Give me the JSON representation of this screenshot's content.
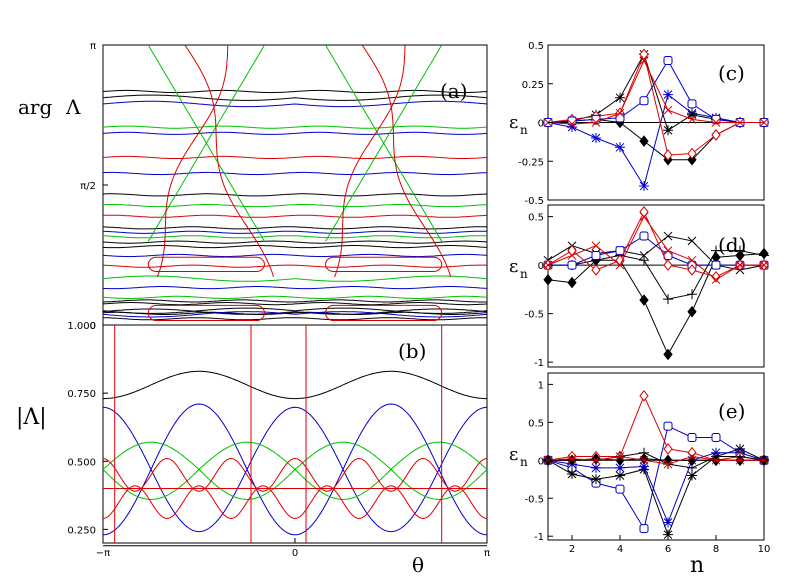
{
  "chart_data": [
    {
      "id": "a",
      "type": "line",
      "panel_label": "(a)",
      "ylabel_main": "arg",
      "ylabel_symbol": "Λ",
      "xlim": [
        -3.1416,
        3.1416
      ],
      "ylim": [
        0,
        3.1416
      ],
      "yticks": [
        {
          "value": 3.1416,
          "label": "π"
        },
        {
          "value": 1.5708,
          "label": "π/2"
        },
        {
          "value": 0,
          "label": "0"
        }
      ],
      "series": [
        {
          "name": "black",
          "color": "#000000",
          "flat_levels": [
            2.62,
            1.46,
            1.09,
            0.93,
            0.88,
            0.27,
            0.24,
            0.13,
            0.07
          ],
          "mid_dip": [
            2.55,
            0.16,
            0.15
          ]
        },
        {
          "name": "blue",
          "color": "#0000cc",
          "flat_levels": [
            2.15,
            1.7,
            1.04,
            0.78,
            0.42
          ],
          "mid_dip": [
            2.48,
            0.12
          ]
        },
        {
          "name": "green",
          "color": "#00c000",
          "flat_levels": [
            2.22,
            1.34,
            0.99,
            0.31
          ],
          "mid_dip": [
            0.52
          ]
        },
        {
          "name": "red",
          "color": "#dd0000",
          "flat_levels": [
            1.88,
            1.22,
            0.66
          ],
          "mid_dip": []
        }
      ]
    },
    {
      "id": "b",
      "type": "line",
      "panel_label": "(b)",
      "ylabel": "|Λ|",
      "xlabel": "θ",
      "xlim": [
        -3.1416,
        3.1416
      ],
      "ylim": [
        0.2,
        1.0
      ],
      "yticks": [
        {
          "value": 1.0,
          "label": "1.000"
        },
        {
          "value": 0.75,
          "label": "0.750"
        },
        {
          "value": 0.5,
          "label": "0.500"
        },
        {
          "value": 0.25,
          "label": "0.250"
        }
      ],
      "xticks": [
        {
          "value": -3.1416,
          "label": "−π"
        },
        {
          "value": 0,
          "label": "0"
        },
        {
          "value": 3.1416,
          "label": "π"
        }
      ],
      "series": [
        {
          "name": "black",
          "color": "#000000",
          "base": 0.78,
          "amp": 0.05,
          "base2": 0.19,
          "amp2": 0.0
        },
        {
          "name": "blue",
          "color": "#0000cc",
          "base": 0.47,
          "amp": 0.24
        },
        {
          "name": "green",
          "color": "#00c000",
          "base": 0.47,
          "amp": 0.1
        },
        {
          "name": "red",
          "color": "#dd0000",
          "base": 0.4,
          "amp": 0.12
        }
      ]
    },
    {
      "id": "c",
      "type": "line",
      "panel_label": "(c)",
      "ylabel": "ε",
      "ylabel_sub": "n",
      "xlim": [
        1,
        10
      ],
      "ylim": [
        -0.5,
        0.5
      ],
      "yticks": [
        {
          "value": 0.5,
          "label": "0.5"
        },
        {
          "value": 0.25,
          "label": "0.25"
        },
        {
          "value": 0,
          "label": "0"
        },
        {
          "value": -0.25,
          "label": "-0.25"
        },
        {
          "value": -0.5,
          "label": "-0.5"
        }
      ],
      "series": [
        {
          "name": "black-diamond-filled",
          "color": "#000000",
          "marker": "diamond-filled",
          "x": [
            1,
            2,
            3,
            4,
            5,
            6,
            7,
            8,
            9,
            10
          ],
          "y": [
            0.0,
            0.01,
            0.02,
            0.0,
            -0.12,
            -0.24,
            -0.24,
            -0.08,
            0.0,
            0.0
          ]
        },
        {
          "name": "blue-star",
          "color": "#0000cc",
          "marker": "star",
          "x": [
            1,
            2,
            3,
            4,
            5,
            6,
            7,
            8,
            9,
            10
          ],
          "y": [
            0.0,
            -0.03,
            -0.1,
            -0.16,
            -0.41,
            0.18,
            0.06,
            0.03,
            0.0,
            0.0
          ]
        },
        {
          "name": "black-star",
          "color": "#000000",
          "marker": "star",
          "x": [
            1,
            2,
            3,
            4,
            5,
            6,
            7,
            8,
            9,
            10
          ],
          "y": [
            0.0,
            0.01,
            0.05,
            0.16,
            0.44,
            -0.05,
            0.05,
            0.02,
            0.0,
            0.0
          ]
        },
        {
          "name": "red-diamond-open",
          "color": "#dd0000",
          "marker": "diamond-open",
          "x": [
            1,
            2,
            3,
            4,
            5,
            6,
            7,
            8,
            9,
            10
          ],
          "y": [
            0.0,
            0.02,
            0.04,
            0.06,
            0.44,
            -0.21,
            -0.2,
            -0.08,
            0.0,
            0.0
          ]
        },
        {
          "name": "blue-square-open",
          "color": "#0000cc",
          "marker": "square-open",
          "x": [
            1,
            2,
            3,
            4,
            5,
            6,
            7,
            8,
            9,
            10
          ],
          "y": [
            0.0,
            0.01,
            0.02,
            0.03,
            0.14,
            0.4,
            0.12,
            0.02,
            0.0,
            0.0
          ]
        },
        {
          "name": "red-cross",
          "color": "#dd0000",
          "marker": "cross",
          "x": [
            1,
            2,
            3,
            4,
            5,
            6,
            7,
            8,
            9,
            10
          ],
          "y": [
            0.0,
            -0.01,
            0.0,
            0.06,
            0.4,
            0.08,
            0.02,
            0.0,
            0.0,
            0.0
          ]
        }
      ]
    },
    {
      "id": "d",
      "type": "line",
      "panel_label": "(d)",
      "ylabel": "ε",
      "ylabel_sub": "n",
      "xlim": [
        1,
        10
      ],
      "ylim": [
        -1.05,
        0.62
      ],
      "yticks": [
        {
          "value": 0.5,
          "label": "0.5"
        },
        {
          "value": 0,
          "label": "0"
        },
        {
          "value": -0.5,
          "label": "-0.5"
        },
        {
          "value": -1.0,
          "label": "-1"
        }
      ],
      "series": [
        {
          "name": "black-diamond-filled",
          "color": "#000000",
          "marker": "diamond-filled",
          "x": [
            1,
            2,
            3,
            4,
            5,
            6,
            7,
            8,
            9,
            10
          ],
          "y": [
            -0.15,
            -0.18,
            0.05,
            0.05,
            -0.36,
            -0.92,
            -0.48,
            0.08,
            0.1,
            0.12
          ]
        },
        {
          "name": "black-plus",
          "color": "#000000",
          "marker": "plus",
          "x": [
            1,
            2,
            3,
            4,
            5,
            6,
            7,
            8,
            9,
            10
          ],
          "y": [
            0.0,
            0.0,
            0.05,
            0.1,
            0.05,
            -0.35,
            -0.3,
            0.15,
            0.15,
            0.1
          ]
        },
        {
          "name": "black-cross",
          "color": "#000000",
          "marker": "cross",
          "x": [
            1,
            2,
            3,
            4,
            5,
            6,
            7,
            8,
            9,
            10
          ],
          "y": [
            0.05,
            0.2,
            0.12,
            0.15,
            0.1,
            0.3,
            0.25,
            0.0,
            -0.05,
            0.0
          ]
        },
        {
          "name": "blue-square-open",
          "color": "#0000cc",
          "marker": "square-open",
          "x": [
            1,
            2,
            3,
            4,
            5,
            6,
            7,
            8,
            9,
            10
          ],
          "y": [
            0.0,
            0.0,
            0.1,
            0.15,
            0.3,
            0.1,
            0.0,
            0.0,
            0.0,
            0.0
          ]
        },
        {
          "name": "red-diamond-open",
          "color": "#dd0000",
          "marker": "diamond-open",
          "x": [
            1,
            2,
            3,
            4,
            5,
            6,
            7,
            8,
            9,
            10
          ],
          "y": [
            0.0,
            0.15,
            -0.05,
            0.05,
            0.55,
            0.0,
            -0.05,
            -0.12,
            0.0,
            0.0
          ]
        },
        {
          "name": "red-cross",
          "color": "#dd0000",
          "marker": "cross",
          "x": [
            1,
            2,
            3,
            4,
            5,
            6,
            7,
            8,
            9,
            10
          ],
          "y": [
            0.0,
            0.1,
            0.2,
            0.0,
            0.5,
            0.15,
            0.05,
            -0.15,
            0.0,
            0.0
          ]
        }
      ]
    },
    {
      "id": "e",
      "type": "line",
      "panel_label": "(e)",
      "ylabel": "ε",
      "ylabel_sub": "n",
      "xlabel": "n",
      "xlim": [
        1,
        10
      ],
      "ylim": [
        -1.05,
        1.15
      ],
      "yticks": [
        {
          "value": 1.0,
          "label": "1"
        },
        {
          "value": 0.5,
          "label": "0.5"
        },
        {
          "value": 0,
          "label": "0"
        },
        {
          "value": -0.5,
          "label": "-0.5"
        },
        {
          "value": -1.0,
          "label": "-1"
        }
      ],
      "xticks": [
        {
          "value": 2,
          "label": "2"
        },
        {
          "value": 4,
          "label": "4"
        },
        {
          "value": 6,
          "label": "6"
        },
        {
          "value": 8,
          "label": "8"
        },
        {
          "value": 10,
          "label": "10"
        }
      ],
      "series": [
        {
          "name": "blue-square-open",
          "color": "#0000cc",
          "marker": "square-open",
          "x": [
            1,
            2,
            3,
            4,
            5,
            6,
            7,
            8,
            9,
            10
          ],
          "y": [
            0.0,
            -0.1,
            -0.3,
            -0.38,
            -0.9,
            0.45,
            0.3,
            0.3,
            0.1,
            0.0
          ]
        },
        {
          "name": "black-star",
          "color": "#000000",
          "marker": "star",
          "x": [
            1,
            2,
            3,
            4,
            5,
            6,
            7,
            8,
            9,
            10
          ],
          "y": [
            0.0,
            -0.18,
            -0.25,
            -0.2,
            -0.12,
            -0.98,
            -0.2,
            0.05,
            0.15,
            0.0
          ]
        },
        {
          "name": "blue-star",
          "color": "#0000cc",
          "marker": "star",
          "x": [
            1,
            2,
            3,
            4,
            5,
            6,
            7,
            8,
            9,
            10
          ],
          "y": [
            0.0,
            -0.05,
            -0.1,
            -0.1,
            -0.08,
            -0.82,
            0.0,
            0.1,
            0.1,
            0.0
          ]
        },
        {
          "name": "red-diamond-open",
          "color": "#dd0000",
          "marker": "diamond-open",
          "x": [
            1,
            2,
            3,
            4,
            5,
            6,
            7,
            8,
            9,
            10
          ],
          "y": [
            0.0,
            0.05,
            0.05,
            0.05,
            0.85,
            0.15,
            0.1,
            0.0,
            0.05,
            0.0
          ]
        },
        {
          "name": "black-diamond-filled",
          "color": "#000000",
          "marker": "diamond-filled",
          "x": [
            1,
            2,
            3,
            4,
            5,
            6,
            7,
            8,
            9,
            10
          ],
          "y": [
            0.0,
            0.0,
            0.02,
            0.0,
            0.02,
            0.0,
            0.0,
            0.0,
            0.0,
            0.0
          ]
        },
        {
          "name": "black-plus",
          "color": "#000000",
          "marker": "plus",
          "x": [
            1,
            2,
            3,
            4,
            5,
            6,
            7,
            8,
            9,
            10
          ],
          "y": [
            0.0,
            0.0,
            0.0,
            0.05,
            0.1,
            -0.05,
            -0.1,
            0.05,
            0.05,
            0.0
          ]
        },
        {
          "name": "red-cross",
          "color": "#dd0000",
          "marker": "cross",
          "x": [
            1,
            2,
            3,
            4,
            5,
            6,
            7,
            8,
            9,
            10
          ],
          "y": [
            0.0,
            0.02,
            0.0,
            0.05,
            0.0,
            -0.05,
            0.05,
            0.0,
            0.0,
            0.0
          ]
        }
      ]
    }
  ]
}
